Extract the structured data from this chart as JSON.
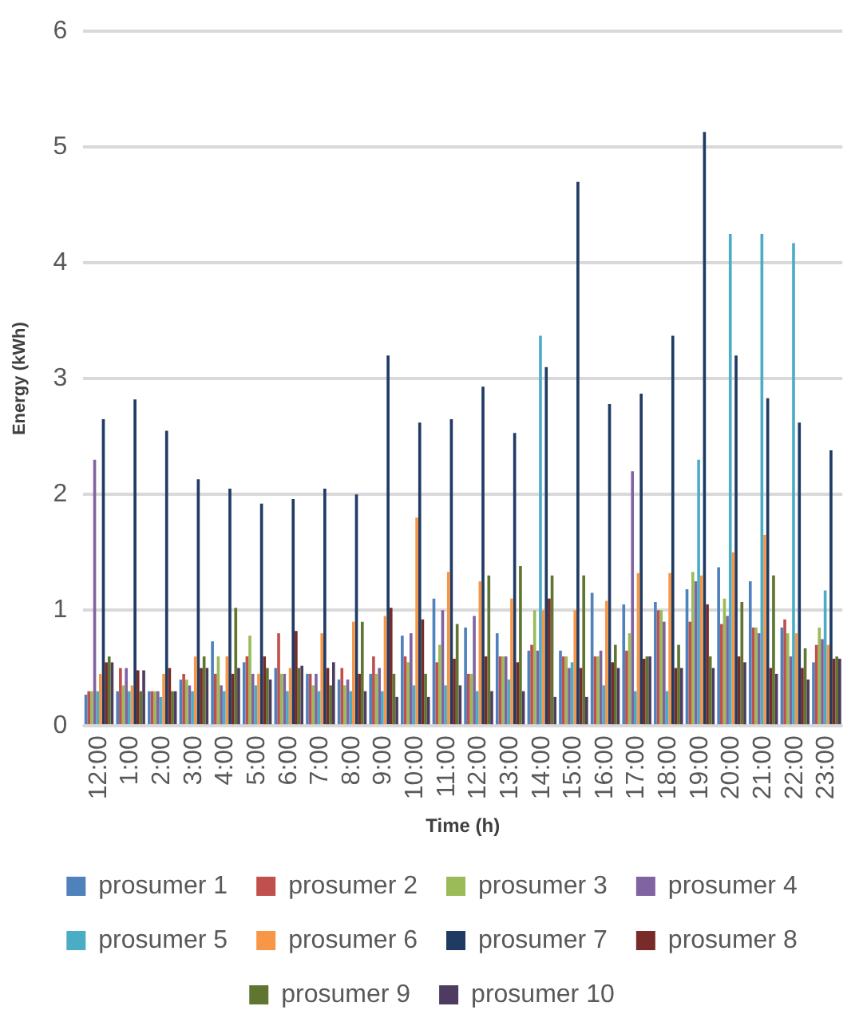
{
  "chart_data": {
    "type": "bar",
    "xlabel": "Time (h)",
    "ylabel": "Energy (kWh)",
    "categories": [
      "12:00",
      "1:00",
      "2:00",
      "3:00",
      "4:00",
      "5:00",
      "6:00",
      "7:00",
      "8:00",
      "9:00",
      "10:00",
      "11:00",
      "12:00",
      "13:00",
      "14:00",
      "15:00",
      "16:00",
      "17:00",
      "18:00",
      "19:00",
      "20:00",
      "21:00",
      "22:00",
      "23:00"
    ],
    "series": [
      {
        "name": "prosumer 1",
        "color": "#4f81bd",
        "values": [
          0.27,
          0.3,
          0.3,
          0.4,
          0.73,
          0.55,
          0.5,
          0.45,
          0.4,
          0.45,
          0.78,
          1.1,
          0.85,
          0.8,
          0.65,
          0.65,
          1.15,
          1.05,
          1.07,
          1.18,
          1.37,
          1.25,
          0.85,
          0.55
        ]
      },
      {
        "name": "prosumer 2",
        "color": "#c0504d",
        "values": [
          0.3,
          0.5,
          0.3,
          0.45,
          0.45,
          0.6,
          0.8,
          0.45,
          0.5,
          0.6,
          0.6,
          0.55,
          0.45,
          0.6,
          0.7,
          0.6,
          0.6,
          0.65,
          1.0,
          0.9,
          0.88,
          0.85,
          0.92,
          0.7
        ]
      },
      {
        "name": "prosumer 3",
        "color": "#9bbb59",
        "values": [
          0.3,
          0.35,
          0.3,
          0.4,
          0.6,
          0.78,
          0.45,
          0.35,
          0.35,
          0.45,
          0.55,
          0.7,
          0.45,
          0.6,
          1.0,
          0.6,
          0.6,
          0.8,
          1.0,
          1.33,
          1.1,
          0.85,
          0.8,
          0.85
        ]
      },
      {
        "name": "prosumer 4",
        "color": "#8064a2",
        "values": [
          2.3,
          0.5,
          0.3,
          0.35,
          0.35,
          0.45,
          0.45,
          0.45,
          0.4,
          0.5,
          0.8,
          1.0,
          0.95,
          0.6,
          0.65,
          0.5,
          0.65,
          2.2,
          0.9,
          1.25,
          0.95,
          0.8,
          0.6,
          0.75
        ]
      },
      {
        "name": "prosumer 5",
        "color": "#4bacc6",
        "values": [
          0.3,
          0.3,
          0.25,
          0.3,
          0.3,
          0.35,
          0.3,
          0.3,
          0.3,
          0.3,
          0.35,
          0.35,
          0.3,
          0.4,
          3.37,
          0.55,
          0.35,
          0.3,
          0.3,
          2.3,
          4.25,
          4.25,
          4.17,
          1.17
        ]
      },
      {
        "name": "prosumer 6",
        "color": "#f79646",
        "values": [
          0.45,
          0.35,
          0.45,
          0.6,
          0.6,
          0.45,
          0.5,
          0.8,
          0.9,
          0.95,
          1.8,
          1.33,
          1.25,
          1.1,
          1.0,
          1.0,
          1.08,
          1.32,
          1.32,
          1.3,
          1.5,
          1.65,
          0.8,
          0.7
        ]
      },
      {
        "name": "prosumer 7",
        "color": "#1f3b64",
        "values": [
          2.65,
          2.82,
          2.55,
          2.13,
          2.05,
          1.92,
          1.96,
          2.05,
          2.0,
          3.2,
          2.62,
          2.65,
          2.93,
          2.53,
          3.1,
          4.7,
          2.78,
          2.87,
          3.37,
          5.13,
          3.2,
          2.83,
          2.62,
          2.38
        ]
      },
      {
        "name": "prosumer 8",
        "color": "#772c2a",
        "values": [
          0.55,
          0.48,
          0.5,
          0.5,
          0.45,
          0.6,
          0.82,
          0.5,
          0.45,
          1.02,
          0.92,
          0.58,
          0.6,
          0.55,
          1.1,
          0.5,
          0.55,
          0.58,
          0.5,
          1.05,
          0.6,
          0.5,
          0.5,
          0.58
        ]
      },
      {
        "name": "prosumer 9",
        "color": "#5f7530",
        "values": [
          0.6,
          0.3,
          0.3,
          0.6,
          1.02,
          0.5,
          0.5,
          0.35,
          0.9,
          0.45,
          0.45,
          0.88,
          1.3,
          1.38,
          1.3,
          1.3,
          0.7,
          0.6,
          0.7,
          0.6,
          1.07,
          1.3,
          0.67,
          0.6
        ]
      },
      {
        "name": "prosumer 10",
        "color": "#4d3b62",
        "values": [
          0.55,
          0.48,
          0.3,
          0.5,
          0.5,
          0.4,
          0.52,
          0.55,
          0.3,
          0.25,
          0.25,
          0.35,
          0.3,
          0.3,
          0.25,
          0.25,
          0.5,
          0.6,
          0.5,
          0.5,
          0.55,
          0.45,
          0.4,
          0.58
        ]
      }
    ],
    "ylim": [
      0,
      6
    ],
    "yticks": [
      0,
      1,
      2,
      3,
      4,
      5,
      6
    ],
    "grid": "y",
    "legend": "bottom"
  }
}
